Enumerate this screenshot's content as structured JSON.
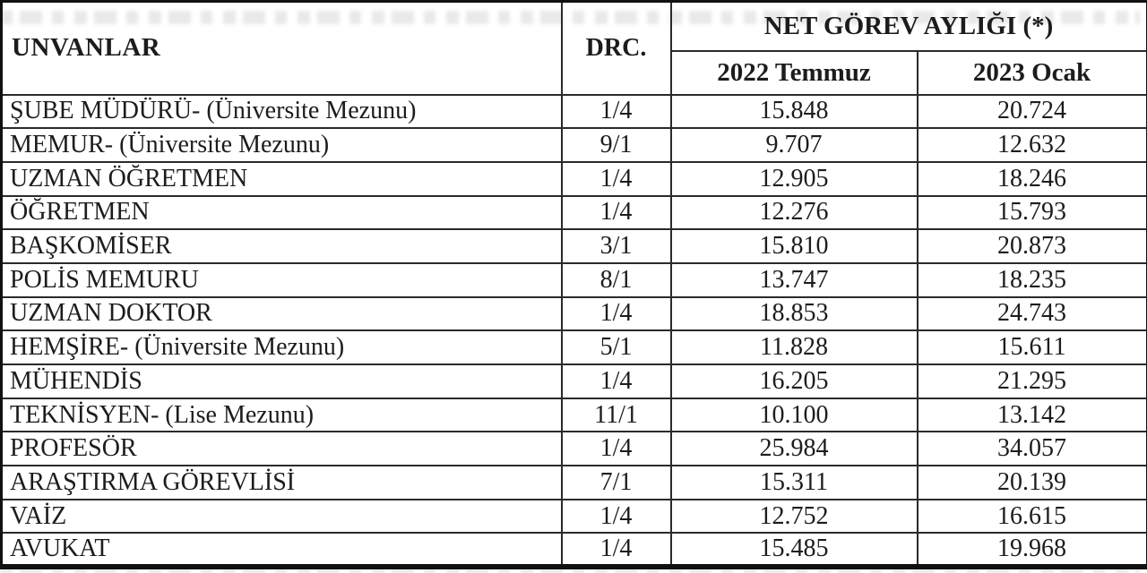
{
  "colors": {
    "text": "#1c1c1c",
    "grid": "#2a2a2a",
    "border": "#111111",
    "background": "#ffffff",
    "artifact": "#e9e9e9"
  },
  "table": {
    "headers": {
      "titles": "UNVANLAR",
      "degree": "DRC.",
      "group": "NET GÖREV AYLIĞI (*)",
      "col_2022": "2022 Temmuz",
      "col_2023": "2023 Ocak"
    },
    "rows": [
      {
        "title": "ŞUBE MÜDÜRÜ- (Üniversite Mezunu)",
        "degree": "1/4",
        "jul_2022": "15.848",
        "jan_2023": "20.724"
      },
      {
        "title": "MEMUR- (Üniversite Mezunu)",
        "degree": "9/1",
        "jul_2022": "9.707",
        "jan_2023": "12.632"
      },
      {
        "title": "UZMAN ÖĞRETMEN",
        "degree": "1/4",
        "jul_2022": "12.905",
        "jan_2023": "18.246"
      },
      {
        "title": "ÖĞRETMEN",
        "degree": "1/4",
        "jul_2022": "12.276",
        "jan_2023": "15.793"
      },
      {
        "title": "BAŞKOMİSER",
        "degree": "3/1",
        "jul_2022": "15.810",
        "jan_2023": "20.873"
      },
      {
        "title": "POLİS MEMURU",
        "degree": "8/1",
        "jul_2022": "13.747",
        "jan_2023": "18.235"
      },
      {
        "title": "UZMAN DOKTOR",
        "degree": "1/4",
        "jul_2022": "18.853",
        "jan_2023": "24.743"
      },
      {
        "title": "HEMŞİRE- (Üniversite Mezunu)",
        "degree": "5/1",
        "jul_2022": "11.828",
        "jan_2023": "15.611"
      },
      {
        "title": "MÜHENDİS",
        "degree": "1/4",
        "jul_2022": "16.205",
        "jan_2023": "21.295"
      },
      {
        "title": "TEKNİSYEN- (Lise Mezunu)",
        "degree": "11/1",
        "jul_2022": "10.100",
        "jan_2023": "13.142"
      },
      {
        "title": "PROFESÖR",
        "degree": "1/4",
        "jul_2022": "25.984",
        "jan_2023": "34.057"
      },
      {
        "title": "ARAŞTIRMA GÖREVLİSİ",
        "degree": "7/1",
        "jul_2022": "15.311",
        "jan_2023": "20.139"
      },
      {
        "title": "VAİZ",
        "degree": "1/4",
        "jul_2022": "12.752",
        "jan_2023": "16.615"
      },
      {
        "title": "AVUKAT",
        "degree": "1/4",
        "jul_2022": "15.485",
        "jan_2023": "19.968"
      }
    ]
  }
}
